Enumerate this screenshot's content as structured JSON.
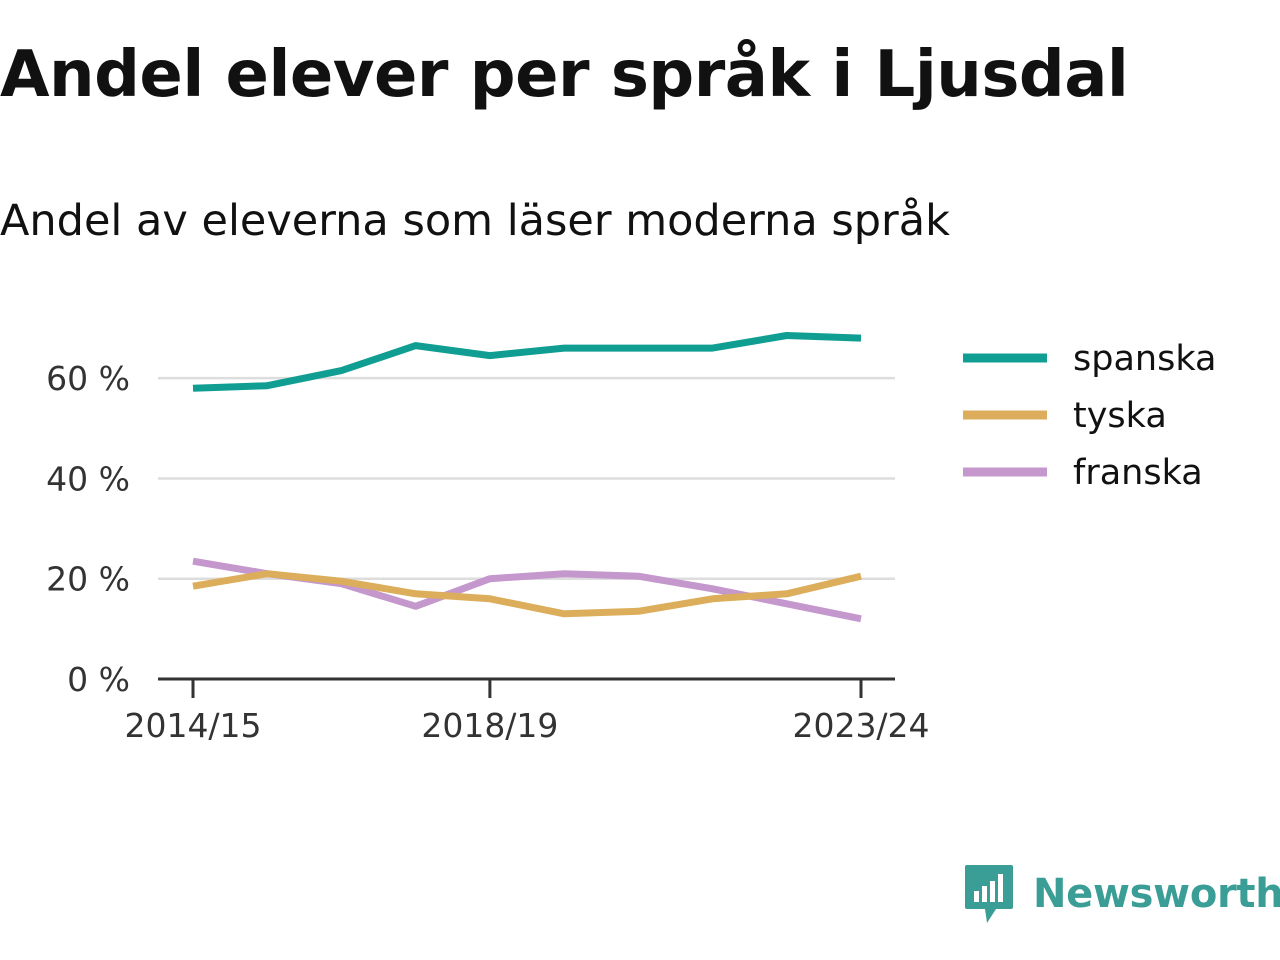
{
  "title": "Andel elever per språk i Ljusdal",
  "subtitle": "Andel av eleverna som läser moderna språk",
  "brand": {
    "name": "Newsworthy",
    "color": "#3a9e96",
    "icon": "newsworthy-logo-icon"
  },
  "chart_data": {
    "type": "line",
    "x": [
      "2014/15",
      "2015/16",
      "2016/17",
      "2017/18",
      "2018/19",
      "2019/20",
      "2020/21",
      "2021/22",
      "2022/23",
      "2023/24"
    ],
    "x_tick_labels": [
      "2014/15",
      "2018/19",
      "2023/24"
    ],
    "y_ticks": [
      0,
      20,
      40,
      60
    ],
    "y_tick_labels": [
      "0 %",
      "20 %",
      "40 %",
      "60 %"
    ],
    "ylim": [
      0,
      72
    ],
    "grid": true,
    "legend_position": "right",
    "series": [
      {
        "name": "spanska",
        "color": "#0f9e91",
        "values": [
          58.0,
          58.5,
          61.5,
          66.5,
          64.5,
          66.0,
          66.0,
          66.0,
          68.5,
          68.0
        ]
      },
      {
        "name": "tyska",
        "color": "#dcae5c",
        "values": [
          18.5,
          21.0,
          19.5,
          17.0,
          16.0,
          13.0,
          13.5,
          16.0,
          17.0,
          20.5
        ]
      },
      {
        "name": "franska",
        "color": "#c498cc",
        "values": [
          23.5,
          21.0,
          19.0,
          14.5,
          20.0,
          21.0,
          20.5,
          18.0,
          15.0,
          12.0
        ]
      }
    ]
  }
}
